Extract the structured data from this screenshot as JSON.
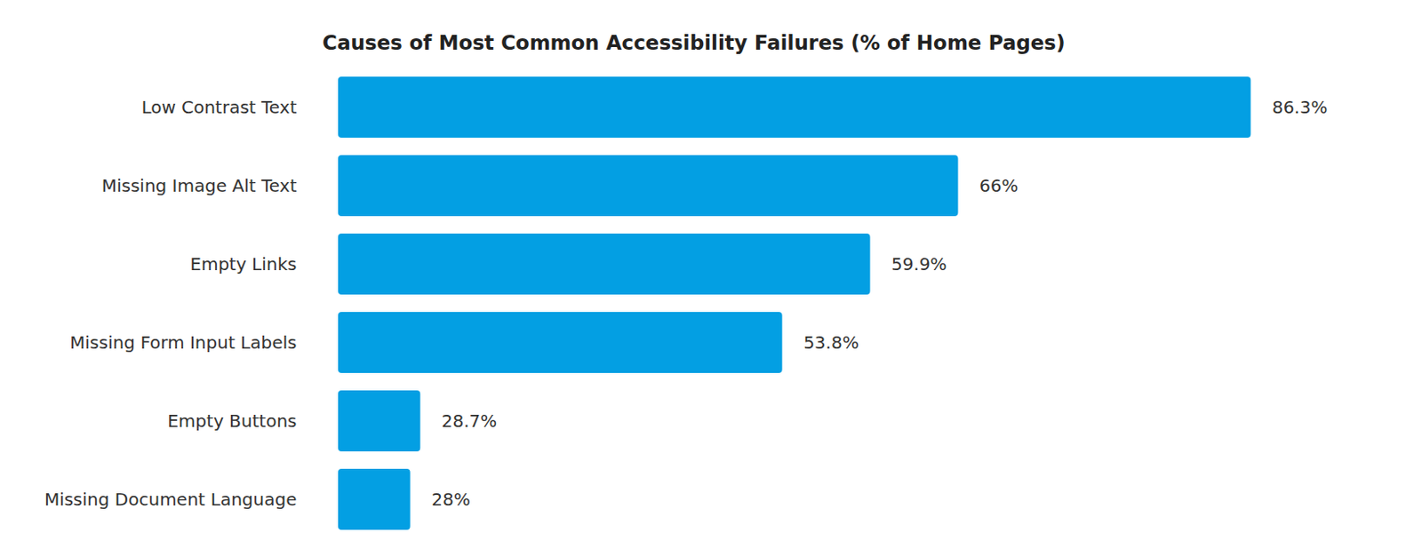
{
  "chart_data": {
    "type": "bar",
    "orientation": "horizontal",
    "title": "Causes of Most Common Accessibility Failures (% of Home Pages)",
    "categories": [
      "Low Contrast Text",
      "Missing Image Alt Text",
      "Empty Links",
      "Missing Form Input Labels",
      "Empty Buttons",
      "Missing Document Language"
    ],
    "values": [
      86.3,
      66,
      59.9,
      53.8,
      28.7,
      28
    ],
    "value_labels": [
      "86.3%",
      "66%",
      "59.9%",
      "53.8%",
      "28.7%",
      "28%"
    ],
    "color": "#039fe3",
    "xlim": [
      23,
      87
    ],
    "data_labels": true,
    "tick_labels": "y",
    "grid": false
  }
}
